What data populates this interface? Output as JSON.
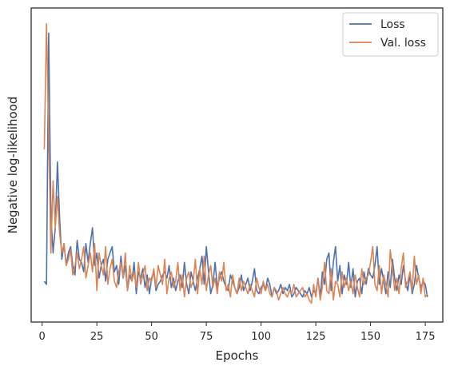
{
  "chart_data": {
    "type": "line",
    "xlabel": "Epochs",
    "ylabel": "Negative log-likelihood",
    "xlim": [
      -5,
      183
    ],
    "ylim": [
      0,
      100
    ],
    "xticks": [
      0,
      25,
      50,
      75,
      100,
      125,
      150,
      175
    ],
    "grid": false,
    "legend": "top-right",
    "x": [
      1,
      2,
      3,
      4,
      5,
      6,
      7,
      8,
      9,
      10,
      11,
      12,
      13,
      14,
      15,
      16,
      17,
      18,
      19,
      20,
      21,
      22,
      23,
      24,
      25,
      26,
      27,
      28,
      29,
      30,
      31,
      32,
      33,
      34,
      35,
      36,
      37,
      38,
      39,
      40,
      41,
      42,
      43,
      44,
      45,
      46,
      47,
      48,
      49,
      50,
      51,
      52,
      53,
      54,
      55,
      56,
      57,
      58,
      59,
      60,
      61,
      62,
      63,
      64,
      65,
      66,
      67,
      68,
      69,
      70,
      71,
      72,
      73,
      74,
      75,
      76,
      77,
      78,
      79,
      80,
      81,
      82,
      83,
      84,
      85,
      86,
      87,
      88,
      89,
      90,
      91,
      92,
      93,
      94,
      95,
      96,
      97,
      98,
      99,
      100,
      101,
      102,
      103,
      104,
      105,
      106,
      107,
      108,
      109,
      110,
      111,
      112,
      113,
      114,
      115,
      116,
      117,
      118,
      119,
      120,
      121,
      122,
      123,
      124,
      125,
      126,
      127,
      128,
      129,
      130,
      131,
      132,
      133,
      134,
      135,
      136,
      137,
      138,
      139,
      140,
      141,
      142,
      143,
      144,
      145,
      146,
      147,
      148,
      149,
      150,
      151,
      152,
      153,
      154,
      155,
      156,
      157,
      158,
      159,
      160,
      161,
      162,
      163,
      164,
      165,
      166,
      167,
      168,
      169,
      170,
      171,
      172,
      173,
      174,
      175,
      176
    ],
    "series": [
      {
        "name": "Loss",
        "color": "#4c72b0",
        "values": [
          13,
          12,
          92,
          35,
          22,
          30,
          51,
          33,
          20,
          25,
          18,
          22,
          24,
          18,
          15,
          26,
          20,
          19,
          16,
          25,
          19,
          25,
          30,
          18,
          22,
          14,
          18,
          20,
          13,
          20,
          22,
          24,
          16,
          18,
          12,
          21,
          14,
          18,
          10,
          15,
          13,
          19,
          9,
          16,
          14,
          17,
          11,
          15,
          9,
          14,
          16,
          10,
          12,
          13,
          15,
          16,
          14,
          18,
          11,
          14,
          10,
          13,
          15,
          11,
          19,
          12,
          9,
          16,
          13,
          10,
          14,
          17,
          21,
          12,
          24,
          16,
          9,
          12,
          19,
          11,
          14,
          16,
          13,
          11,
          10,
          15,
          13,
          11,
          9,
          11,
          15,
          10,
          12,
          14,
          10,
          13,
          17,
          10,
          9,
          11,
          12,
          10,
          14,
          12,
          8,
          11,
          9,
          10,
          12,
          9,
          11,
          10,
          12,
          8,
          9,
          11,
          10,
          9,
          8,
          10,
          9,
          11,
          8,
          10,
          9,
          14,
          8,
          16,
          12,
          20,
          22,
          10,
          19,
          24,
          13,
          18,
          9,
          15,
          12,
          19,
          11,
          17,
          8,
          13,
          14,
          9,
          16,
          12,
          17,
          15,
          14,
          18,
          24,
          12,
          17,
          13,
          9,
          16,
          11,
          20,
          14,
          10,
          15,
          12,
          18,
          13,
          10,
          15,
          9,
          12,
          18,
          14,
          11,
          13,
          12,
          8
        ]
      },
      {
        "name": "Val. loss",
        "color": "#dd8452",
        "values": [
          55,
          95,
          60,
          22,
          45,
          30,
          40,
          28,
          22,
          25,
          18,
          20,
          23,
          15,
          18,
          22,
          17,
          20,
          24,
          14,
          18,
          22,
          16,
          25,
          10,
          22,
          18,
          15,
          24,
          12,
          17,
          20,
          13,
          11,
          16,
          19,
          14,
          22,
          10,
          18,
          13,
          16,
          11,
          19,
          12,
          15,
          18,
          10,
          14,
          13,
          17,
          11,
          18,
          15,
          12,
          20,
          9,
          14,
          16,
          11,
          13,
          19,
          10,
          15,
          8,
          14,
          16,
          11,
          13,
          20,
          9,
          17,
          12,
          21,
          10,
          15,
          18,
          11,
          14,
          9,
          16,
          13,
          19,
          10,
          12,
          8,
          15,
          11,
          9,
          14,
          10,
          13,
          11,
          9,
          12,
          10,
          8,
          14,
          11,
          9,
          13,
          10,
          12,
          9,
          8,
          11,
          10,
          7,
          9,
          11,
          9,
          8,
          10,
          9,
          12,
          8,
          9,
          10,
          11,
          8,
          9,
          7,
          6,
          12,
          8,
          14,
          7,
          11,
          19,
          10,
          9,
          17,
          7,
          13,
          12,
          8,
          16,
          11,
          14,
          10,
          13,
          9,
          15,
          11,
          8,
          17,
          12,
          14,
          15,
          19,
          24,
          12,
          10,
          18,
          9,
          15,
          12,
          8,
          23,
          17,
          10,
          14,
          9,
          17,
          22,
          11,
          13,
          16,
          10,
          21,
          12,
          15,
          9,
          14,
          8,
          9
        ]
      }
    ]
  }
}
